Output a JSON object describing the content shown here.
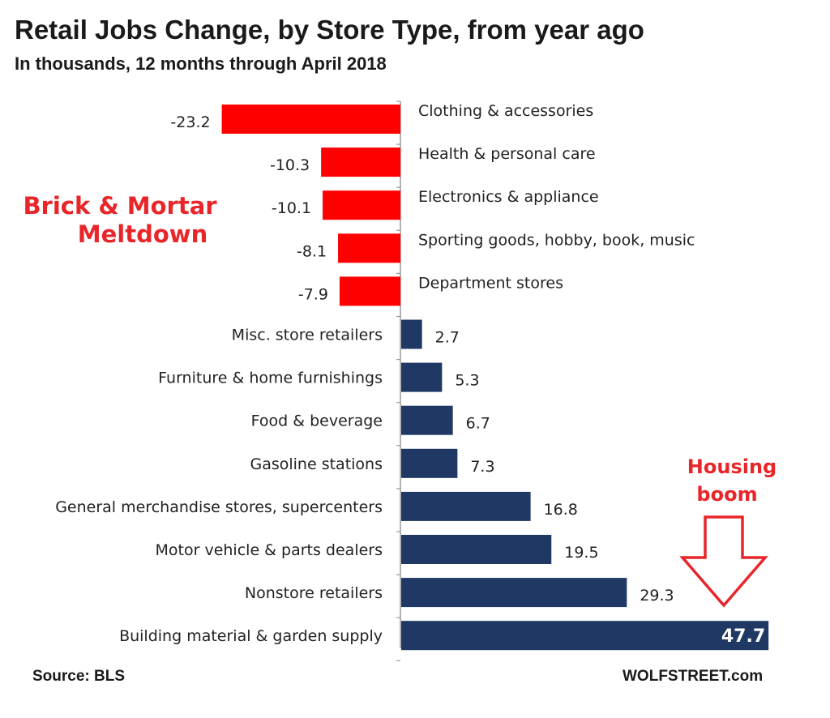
{
  "chart_data": {
    "type": "bar",
    "orientation": "horizontal",
    "title": "Retail Jobs Change, by Store Type, from year ago",
    "subtitle": "In thousands, 12 months through April 2018",
    "categories": [
      "Clothing & accessories",
      "Health & personal care",
      "Electronics &  appliance",
      "Sporting goods, hobby, book, music",
      "Department stores",
      "Misc. store retailers",
      "Furniture & home furnishings",
      "Food & beverage",
      "Gasoline stations",
      "General merchandise stores, supercenters",
      "Motor vehicle & parts dealers",
      "Nonstore retailers",
      "Building material & garden supply"
    ],
    "values": [
      -23.2,
      -10.3,
      -10.1,
      -8.1,
      -7.9,
      2.7,
      5.3,
      6.7,
      7.3,
      16.8,
      19.5,
      29.3,
      47.7
    ],
    "value_labels": [
      "-23.2",
      "-10.3",
      "-10.1",
      "-8.1",
      "-7.9",
      "2.7",
      "5.3",
      "6.7",
      "7.3",
      "16.8",
      "19.5",
      "29.3",
      "47.7"
    ],
    "xlim": [
      -26,
      48
    ],
    "xlabel": "",
    "ylabel": "",
    "grid": false,
    "colors": {
      "negative": "#ff0000",
      "positive": "#1f3864",
      "annotation": "#e8262a"
    },
    "annotations": [
      {
        "lines": [
          "Brick & Mortar",
          "Meltdown"
        ],
        "target": "negative bars"
      },
      {
        "lines": [
          "Housing",
          "boom"
        ],
        "target": "Building material & garden supply"
      }
    ]
  },
  "footer": {
    "source": "Source: BLS",
    "site": "WOLFSTREET.com"
  }
}
